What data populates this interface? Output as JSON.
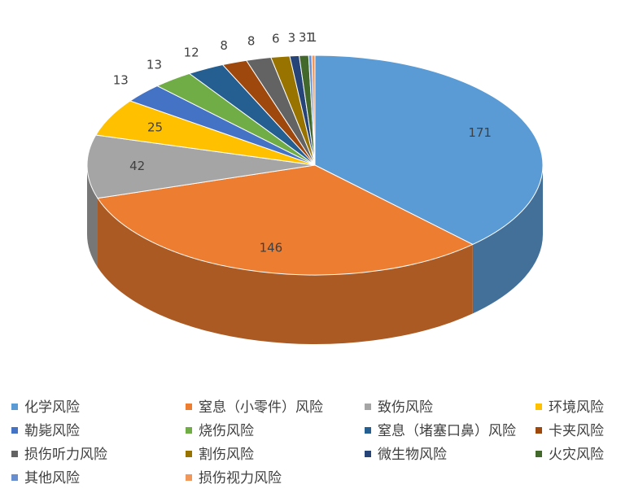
{
  "chart_data": {
    "type": "pie3d",
    "categories": [
      "化学风险",
      "窒息（小零件）风险",
      "致伤风险",
      "环境风险",
      "勒毙风险",
      "烧伤风险",
      "窒息（堵塞口鼻）风险",
      "卡夹风险",
      "损伤听力风险",
      "割伤风险",
      "微生物风险",
      "火灾风险",
      "其他风险",
      "损伤视力风险"
    ],
    "values": [
      171,
      146,
      42,
      25,
      13,
      13,
      12,
      8,
      8,
      6,
      3,
      3,
      1,
      1
    ],
    "colors": [
      "#5b9bd5",
      "#ed7d31",
      "#a5a5a5",
      "#ffc000",
      "#4472c4",
      "#70ad47",
      "#255e91",
      "#9e480e",
      "#636363",
      "#997300",
      "#264478",
      "#43682b",
      "#698ed0",
      "#f1975a"
    ],
    "legend": "bottom"
  }
}
